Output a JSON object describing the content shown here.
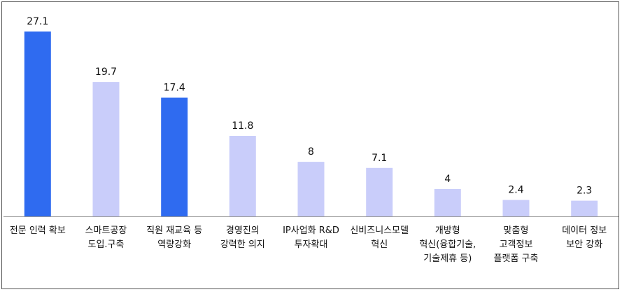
{
  "chart_data": {
    "type": "bar",
    "categories": [
      [
        "전문 인력 확보"
      ],
      [
        "스마트공장",
        "도입.구축"
      ],
      [
        "직원 재교육 등",
        "역량강화"
      ],
      [
        "경영진의",
        "강력한 의지"
      ],
      [
        "IP사업화 R&D",
        "투자확대"
      ],
      [
        "신비즈니스모델",
        "혁신"
      ],
      [
        "개방형",
        "혁신(융합기술,",
        "기술제휴 등)"
      ],
      [
        "맞춤형",
        "고객정보",
        "플랫폼 구축"
      ],
      [
        "데이터 정보",
        "보안 강화"
      ]
    ],
    "values": [
      27.1,
      19.7,
      17.4,
      11.8,
      8,
      7.1,
      4,
      2.4,
      2.3
    ],
    "value_labels": [
      "27.1",
      "19.7",
      "17.4",
      "11.8",
      "8",
      "7.1",
      "4",
      "2.4",
      "2.3"
    ],
    "highlight": [
      true,
      false,
      true,
      false,
      false,
      false,
      false,
      false,
      false
    ],
    "ylim": [
      0,
      27.1
    ],
    "title": "",
    "xlabel": "",
    "ylabel": "",
    "grid": false,
    "legend": "none"
  },
  "colors": {
    "highlight": "#2f6bf0",
    "default": "#c9cdfa",
    "axis": "#999999",
    "text": "#111111",
    "border": "#555555"
  }
}
